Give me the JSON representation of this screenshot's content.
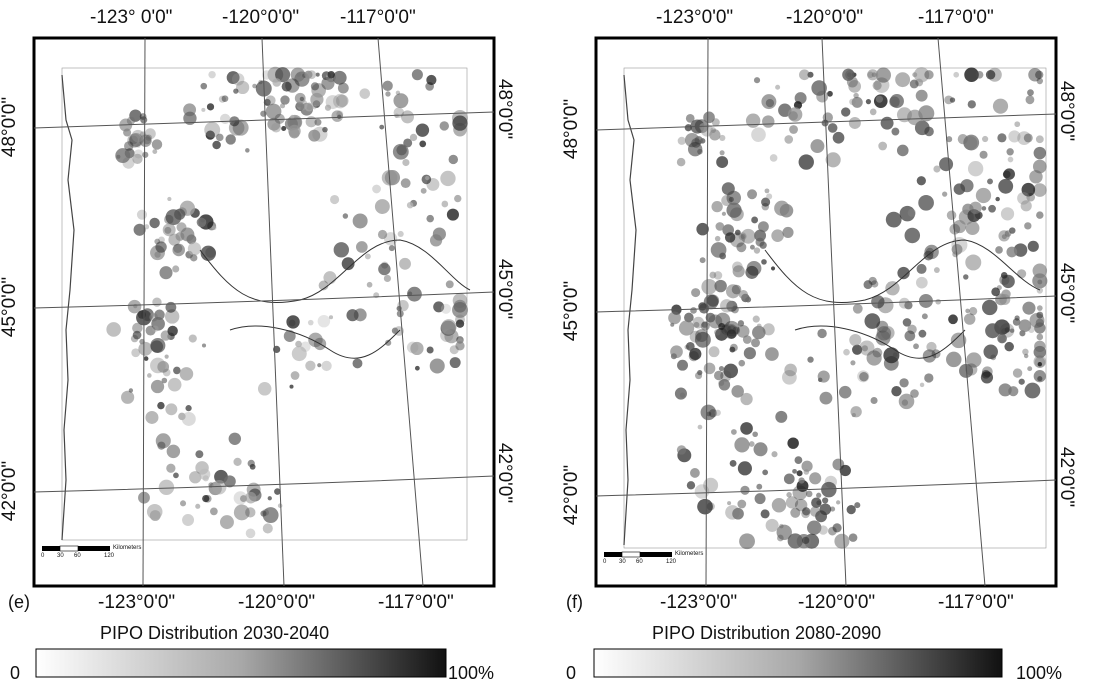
{
  "panels": [
    {
      "id": "e",
      "letter": "(e)",
      "title": "PIPO Distribution 2030-2040",
      "legend_min": "0",
      "legend_max": "100%",
      "top_lon": [
        "-123° 0'0\"",
        "-120°0'0\"",
        "-117°0'0\""
      ],
      "bottom_lon": [
        "-123°0'0\"",
        "-120°0'0\"",
        "-117°0'0\""
      ],
      "left_lat": [
        "48°0'0\"",
        "45°0'0\"",
        "42°0'0\""
      ],
      "right_lat": [
        "48°0'0\"",
        "45°0'0\"",
        "42°0'0\""
      ],
      "scale_ticks": [
        "0",
        "30",
        "60",
        "120"
      ],
      "scale_unit": "Kilometers",
      "density": 0.55
    },
    {
      "id": "f",
      "letter": "(f)",
      "title": "PIPO Distribution 2080-2090",
      "legend_min": "0",
      "legend_max": "100%",
      "top_lon": [
        "-123°0'0\"",
        "-120°0'0\"",
        "-117°0'0\""
      ],
      "bottom_lon": [
        "-123°0'0\"",
        "-120°0'0\"",
        "-117°0'0\""
      ],
      "left_lat": [
        "48°0'0\"",
        "45°0'0\"",
        "42°0'0\""
      ],
      "right_lat": [
        "48°0'0\"",
        "45°0'0\"",
        "42°0'0\""
      ],
      "scale_ticks": [
        "0",
        "30",
        "60",
        "120"
      ],
      "scale_unit": "Kilometers",
      "density": 0.9
    }
  ],
  "colors": {
    "ink": "#111111",
    "dark": "#1a1a1a",
    "mid": "#7a7a7a",
    "light": "#cfcfcf",
    "paper": "#ffffff"
  }
}
